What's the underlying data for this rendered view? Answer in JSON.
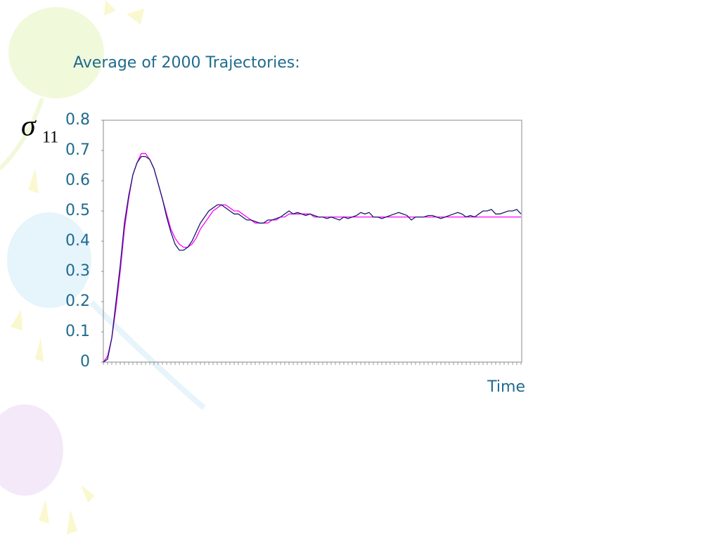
{
  "chart_data": {
    "type": "line",
    "title": "Average of 2000 Trajectories:",
    "ylabel": {
      "symbol": "σ",
      "subscript": "11"
    },
    "xlabel": "Time",
    "categories": [
      null,
      null,
      null,
      null,
      null,
      null,
      null,
      null,
      null,
      null,
      null,
      null,
      null,
      null,
      null,
      null,
      null,
      null,
      null,
      null,
      null,
      null,
      null,
      null,
      null,
      null,
      null,
      null,
      null,
      null,
      null,
      null,
      null,
      null,
      null,
      null,
      null,
      null,
      null,
      null,
      null,
      null,
      null,
      null,
      null,
      null,
      null,
      null,
      null,
      null,
      null,
      null,
      null,
      null,
      null,
      null,
      null,
      null,
      null,
      null,
      null,
      null,
      null,
      null,
      null,
      null,
      null,
      null,
      null,
      null,
      null,
      null,
      null,
      null,
      null,
      null,
      null,
      null,
      null,
      null,
      null,
      null,
      null,
      null,
      null,
      null,
      null,
      null,
      null,
      null,
      null,
      null,
      null,
      null,
      null,
      null,
      null,
      null,
      null,
      null
    ],
    "series": [
      {
        "color": "#ff00ff",
        "values": [
          0,
          0.02,
          0.08,
          0.18,
          0.3,
          0.44,
          0.54,
          0.62,
          0.66,
          0.69,
          0.69,
          0.67,
          0.64,
          0.59,
          0.54,
          0.49,
          0.44,
          0.41,
          0.39,
          0.38,
          0.38,
          0.39,
          0.41,
          0.44,
          0.46,
          0.48,
          0.5,
          0.51,
          0.52,
          0.52,
          0.51,
          0.5,
          0.5,
          0.49,
          0.48,
          0.47,
          0.46,
          0.46,
          0.46,
          0.46,
          0.47,
          0.47,
          0.48,
          0.48,
          0.49,
          0.49,
          0.49,
          0.49,
          0.49,
          0.49,
          0.48,
          0.48,
          0.48,
          0.48,
          0.48,
          0.48,
          0.48,
          0.48,
          0.48,
          0.48,
          0.48,
          0.48,
          0.48,
          0.48,
          0.48,
          0.48,
          0.48,
          0.48,
          0.48,
          0.48,
          0.48,
          0.48,
          0.48,
          0.48,
          0.48,
          0.48,
          0.48,
          0.48,
          0.48,
          0.48,
          0.48,
          0.48,
          0.48,
          0.48,
          0.48,
          0.48,
          0.48,
          0.48,
          0.48,
          0.48,
          0.48,
          0.48,
          0.48,
          0.48,
          0.48,
          0.48,
          0.48,
          0.48,
          0.48,
          0.48
        ]
      },
      {
        "color": "#1a1a6e",
        "values": [
          0,
          0.01,
          0.08,
          0.2,
          0.32,
          0.46,
          0.55,
          0.62,
          0.66,
          0.68,
          0.68,
          0.67,
          0.64,
          0.59,
          0.54,
          0.48,
          0.43,
          0.39,
          0.37,
          0.37,
          0.38,
          0.4,
          0.43,
          0.46,
          0.48,
          0.5,
          0.51,
          0.52,
          0.52,
          0.51,
          0.5,
          0.49,
          0.49,
          0.48,
          0.47,
          0.47,
          0.465,
          0.46,
          0.46,
          0.47,
          0.47,
          0.475,
          0.48,
          0.49,
          0.5,
          0.49,
          0.495,
          0.49,
          0.485,
          0.49,
          0.485,
          0.48,
          0.48,
          0.475,
          0.48,
          0.475,
          0.47,
          0.48,
          0.475,
          0.48,
          0.485,
          0.495,
          0.49,
          0.495,
          0.48,
          0.48,
          0.475,
          0.48,
          0.485,
          0.49,
          0.495,
          0.49,
          0.485,
          0.47,
          0.48,
          0.48,
          0.48,
          0.485,
          0.485,
          0.48,
          0.475,
          0.48,
          0.485,
          0.49,
          0.495,
          0.49,
          0.48,
          0.485,
          0.48,
          0.49,
          0.5,
          0.5,
          0.505,
          0.49,
          0.49,
          0.495,
          0.5,
          0.5,
          0.505,
          0.49
        ]
      }
    ],
    "ylim": [
      0,
      0.8
    ],
    "yticks": [
      0,
      0.1,
      0.2,
      0.3,
      0.4,
      0.5,
      0.6,
      0.7,
      0.8
    ],
    "grid": false
  }
}
